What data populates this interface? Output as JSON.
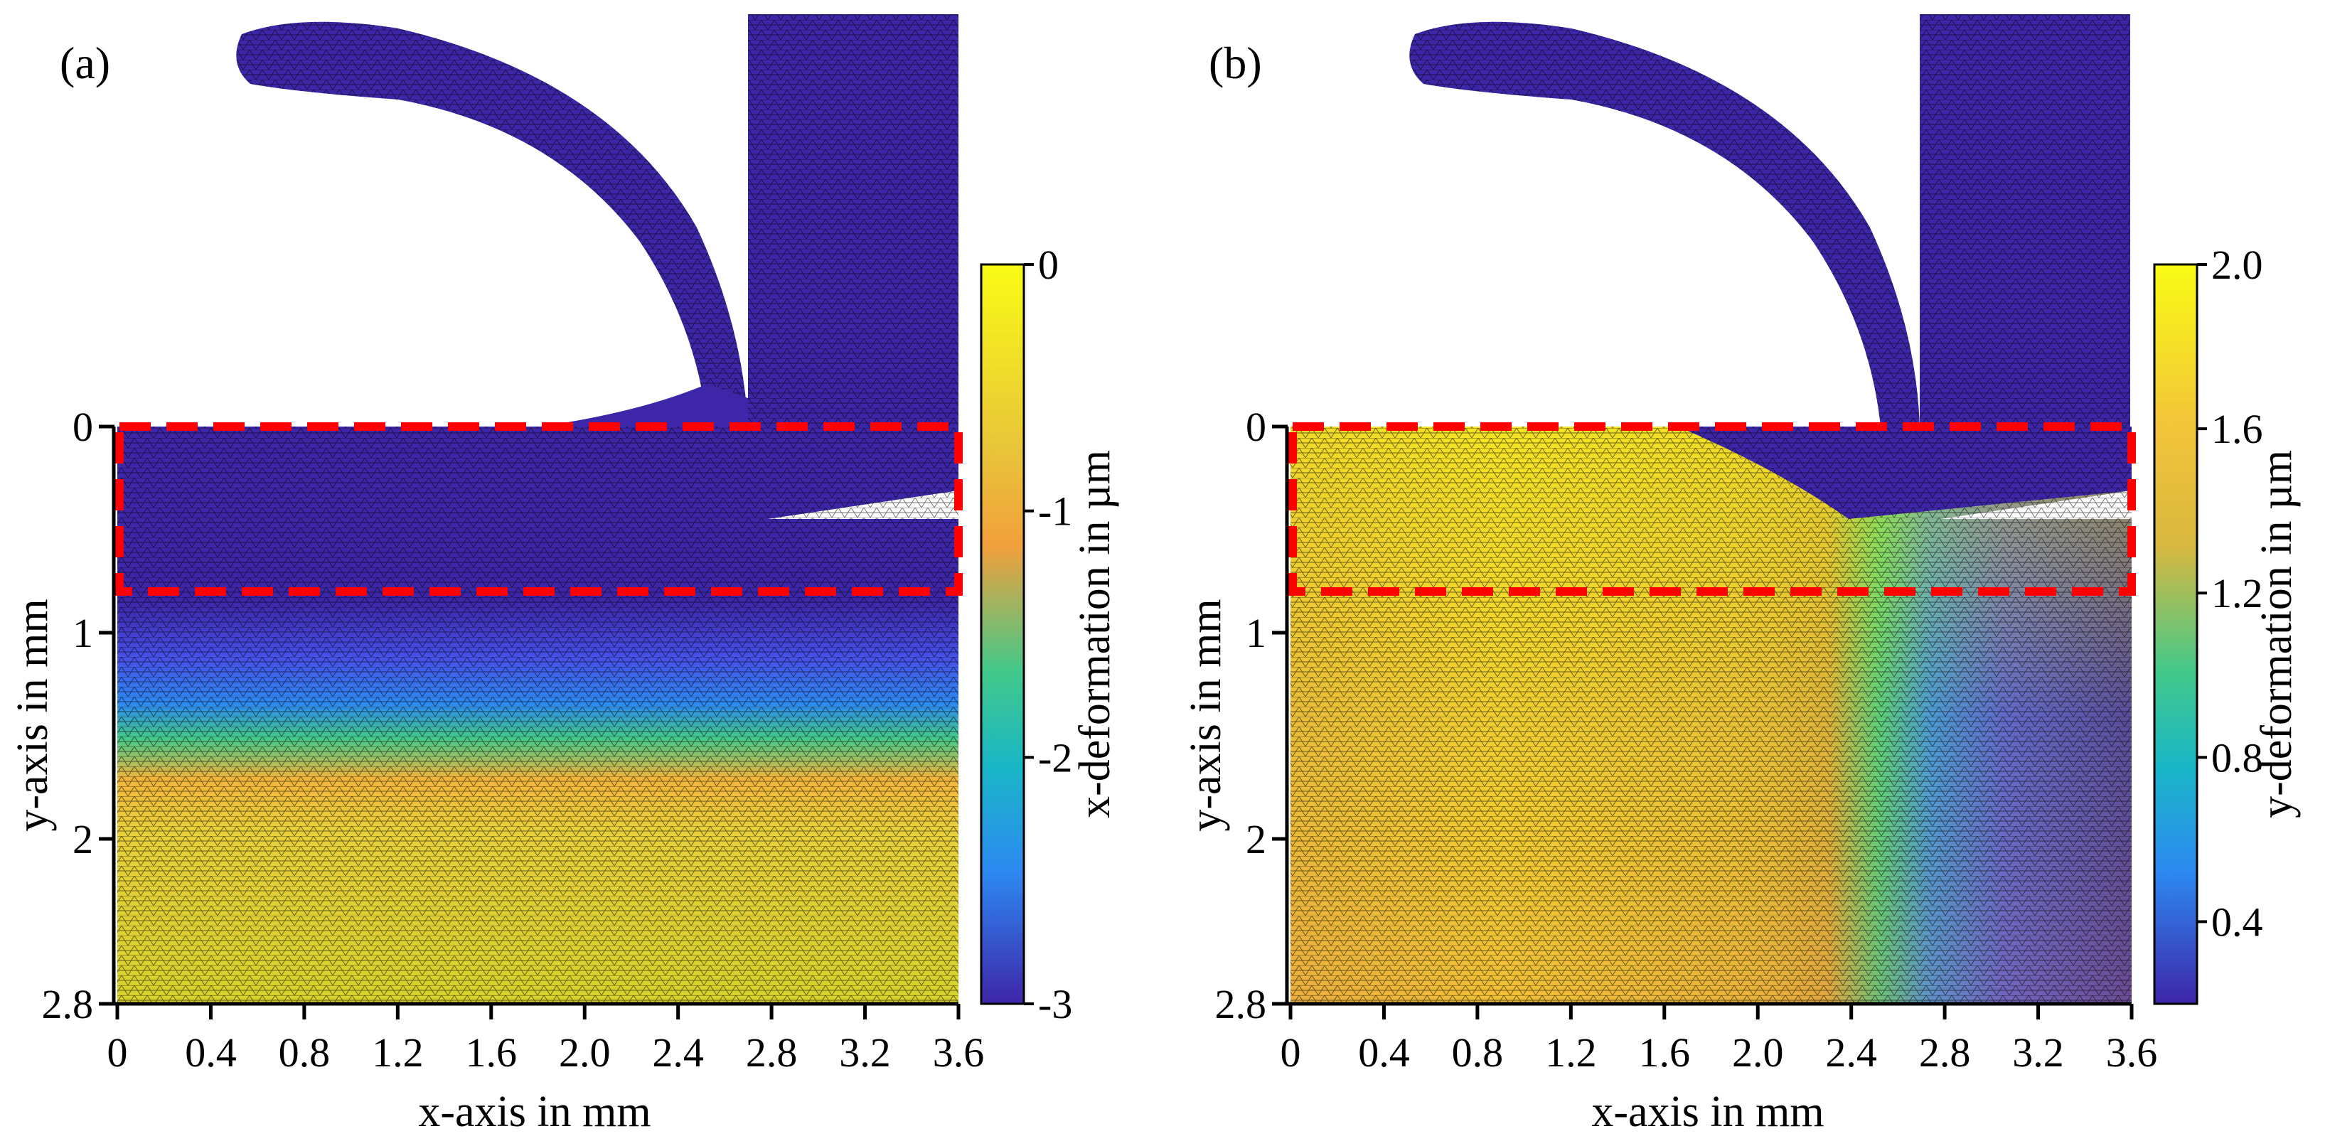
{
  "figure": {
    "colormap": [
      "#3e26a8",
      "#4750e8",
      "#2d8af2",
      "#19b6c6",
      "#43c98a",
      "#b8bd3d",
      "#f2b53b",
      "#f9dc2a",
      "#f9fb15"
    ],
    "roi_color": "#ff0000",
    "mesh_color": "#000000"
  },
  "chart_data": [
    {
      "type": "heatmap",
      "panel_label": "(a)",
      "quantity": "x-deformation",
      "xlabel": "x-axis in mm",
      "ylabel": "y-axis in mm",
      "xlim": [
        0,
        3.6
      ],
      "ylim": [
        0,
        2.8
      ],
      "x_ticks": [
        "0",
        "0.4",
        "0.8",
        "1.2",
        "1.6",
        "2.0",
        "2.4",
        "2.8",
        "3.2",
        "3.6"
      ],
      "y_ticks": [
        "0",
        "1",
        "2",
        "2.8"
      ],
      "colorbar": {
        "label": "x-deformation in µm",
        "range": [
          -3,
          0
        ],
        "ticks": [
          "0",
          "-1",
          "-2",
          "-3"
        ]
      },
      "roi": {
        "x": [
          0,
          3.6
        ],
        "y": [
          0,
          0.8
        ]
      },
      "field_profile_y": [
        [
          0,
          -3
        ],
        [
          0.9,
          -3
        ],
        [
          1.15,
          -2.7
        ],
        [
          1.35,
          -2.2
        ],
        [
          1.55,
          -1.4
        ],
        [
          1.75,
          -0.6
        ],
        [
          2.0,
          -0.2
        ],
        [
          2.8,
          0
        ]
      ]
    },
    {
      "type": "heatmap",
      "panel_label": "(b)",
      "quantity": "y-deformation",
      "xlabel": "x-axis in mm",
      "ylabel": "y-axis in mm",
      "xlim": [
        0,
        3.6
      ],
      "ylim": [
        0,
        2.8
      ],
      "x_ticks": [
        "0",
        "0.4",
        "0.8",
        "1.2",
        "1.6",
        "2.0",
        "2.4",
        "2.8",
        "3.2",
        "3.6"
      ],
      "y_ticks": [
        "0",
        "1",
        "2",
        "2.8"
      ],
      "colorbar": {
        "label": "y-deformation in µm",
        "range": [
          0.2,
          2.0
        ],
        "ticks": [
          "2.0",
          "1.6",
          "1.2",
          "0.8",
          "0.4"
        ]
      },
      "roi": {
        "x": [
          0,
          3.6
        ],
        "y": [
          0,
          0.8
        ]
      },
      "field_profile_x": [
        [
          0,
          1.8
        ],
        [
          1.0,
          1.9
        ],
        [
          2.0,
          1.75
        ],
        [
          2.3,
          1.5
        ],
        [
          2.6,
          1.0
        ],
        [
          2.9,
          0.5
        ],
        [
          3.6,
          0.3
        ]
      ]
    }
  ]
}
